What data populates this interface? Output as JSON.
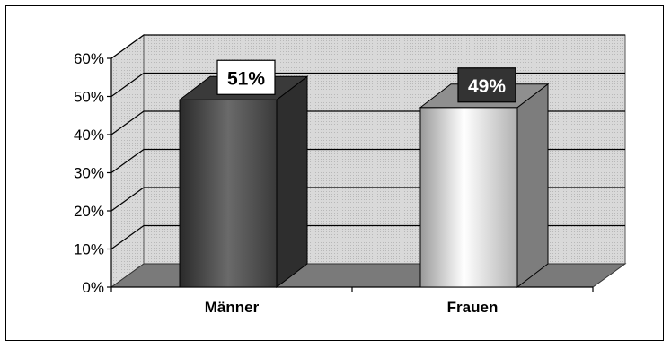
{
  "chart_data": {
    "type": "bar",
    "style": "3d-column",
    "categories": [
      "Männer",
      "Frauen"
    ],
    "values": [
      51,
      49
    ],
    "unit": "%",
    "data_labels": [
      "51%",
      "49%"
    ],
    "yticks": [
      "0%",
      "10%",
      "20%",
      "30%",
      "40%",
      "50%",
      "60%"
    ],
    "ylim": [
      0,
      60
    ],
    "grid": true,
    "legend": "none",
    "title": "",
    "xlabel": "",
    "ylabel": "",
    "colors": {
      "back_wall": "#d4d4d4",
      "floor": "#7a7a7a",
      "bar1_front": "#555555",
      "bar1_side": "#2e2e2e",
      "bar1_top": "#3a3a3a",
      "bar2_front": "#eeeeee",
      "bar2_side": "#7d7d7d",
      "bar2_top": "#8f8f8f",
      "label1_bg": "#ffffff",
      "label1_fg": "#000000",
      "label2_bg": "#333333",
      "label2_fg": "#ffffff"
    }
  }
}
